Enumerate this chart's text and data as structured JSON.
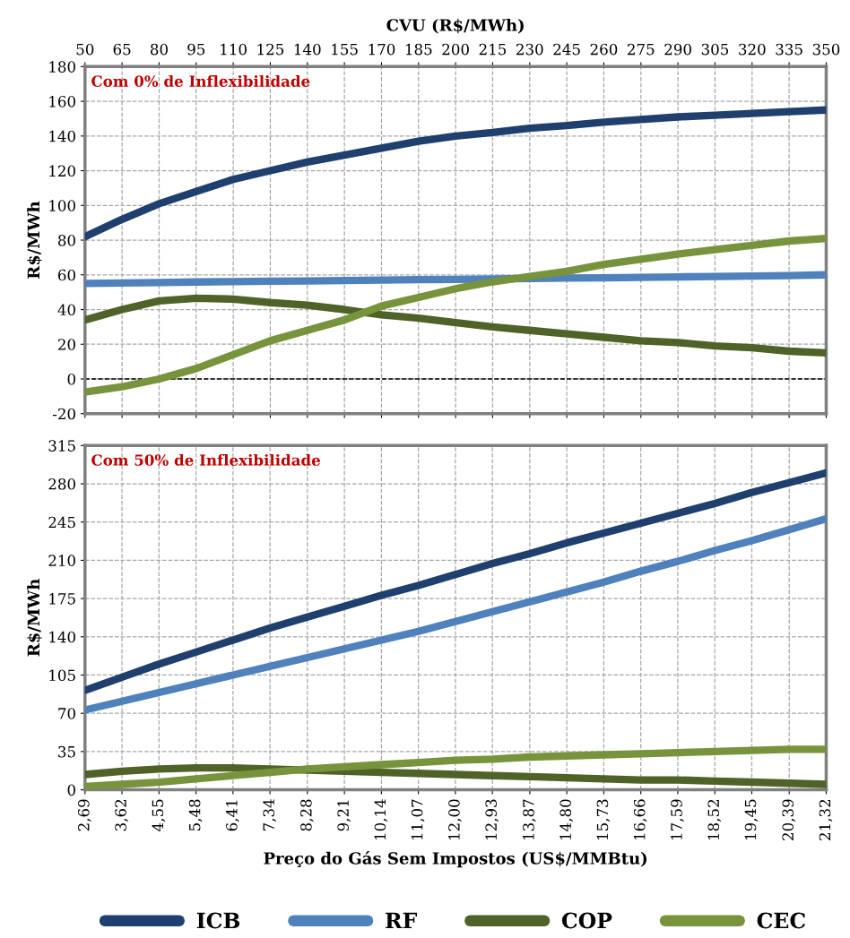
{
  "chart_data": [
    {
      "type": "line",
      "ylabel": "R$/MWh",
      "xlabel": "CVU (R$/MWh)",
      "annotations": [
        "Com 0% de Inflexibilidade"
      ],
      "xlim": [
        50,
        350
      ],
      "xticks": [
        50,
        65,
        80,
        95,
        110,
        125,
        140,
        155,
        170,
        185,
        200,
        215,
        230,
        245,
        260,
        275,
        290,
        305,
        320,
        335,
        350
      ],
      "ylim": [
        -20,
        180
      ],
      "yticks": [
        -20,
        0,
        20,
        40,
        60,
        80,
        100,
        120,
        140,
        160,
        180
      ],
      "x": [
        50,
        65,
        80,
        95,
        110,
        125,
        140,
        155,
        170,
        185,
        200,
        215,
        230,
        245,
        260,
        275,
        290,
        305,
        320,
        335,
        350
      ],
      "grid": true,
      "legend": false,
      "marker": "none",
      "line_style": "solid",
      "ref_lines": [
        {
          "axis": "y",
          "value": 0,
          "color": "#000000",
          "line_style": "dashed"
        }
      ],
      "series": [
        {
          "color": "#1f3f6e",
          "values": [
            82,
            92,
            101,
            108,
            115,
            120,
            125,
            129,
            133,
            137,
            140,
            142,
            144.5,
            146,
            148,
            149.5,
            151,
            152,
            153,
            154,
            155
          ]
        },
        {
          "color": "#4f81bd",
          "values": [
            55,
            55.3,
            55.6,
            55.9,
            56.1,
            56.3,
            56.5,
            56.7,
            57,
            57.2,
            57.4,
            57.6,
            57.9,
            58.1,
            58.3,
            58.5,
            58.8,
            59,
            59.3,
            59.6,
            60
          ]
        },
        {
          "color": "#4f6228",
          "values": [
            34,
            40,
            45,
            46.5,
            46,
            44,
            42.5,
            40,
            37,
            35,
            32.5,
            30,
            28,
            26,
            24,
            22,
            21,
            19,
            18,
            16,
            15
          ]
        },
        {
          "color": "#77933c",
          "values": [
            -7.5,
            -4.5,
            0,
            6,
            14,
            22,
            28,
            34,
            42,
            47,
            52,
            56,
            59,
            62,
            66,
            69,
            72,
            74.5,
            77,
            79.5,
            81
          ]
        }
      ]
    },
    {
      "type": "line",
      "ylabel": "R$/MWh",
      "xlabel": "Preço do Gás Sem Impostos (US$/MMBtu)",
      "annotations": [
        "Com 50% de Inflexibilidade"
      ],
      "xlim": [
        2.69,
        21.32
      ],
      "xticks": [
        {
          "value": 2.69,
          "label": "2,69"
        },
        {
          "value": 3.62,
          "label": "3,62"
        },
        {
          "value": 4.55,
          "label": "4,55"
        },
        {
          "value": 5.48,
          "label": "5,48"
        },
        {
          "value": 6.41,
          "label": "6,41"
        },
        {
          "value": 7.34,
          "label": "7,34"
        },
        {
          "value": 8.28,
          "label": "8,28"
        },
        {
          "value": 9.21,
          "label": "9,21"
        },
        {
          "value": 10.14,
          "label": "10,14"
        },
        {
          "value": 11.07,
          "label": "11,07"
        },
        {
          "value": 12.0,
          "label": "12,00"
        },
        {
          "value": 12.93,
          "label": "12,93"
        },
        {
          "value": 13.87,
          "label": "13,87"
        },
        {
          "value": 14.8,
          "label": "14,80"
        },
        {
          "value": 15.73,
          "label": "15,73"
        },
        {
          "value": 16.66,
          "label": "16,66"
        },
        {
          "value": 17.59,
          "label": "17,59"
        },
        {
          "value": 18.52,
          "label": "18,52"
        },
        {
          "value": 19.45,
          "label": "19,45"
        },
        {
          "value": 20.39,
          "label": "20,39"
        },
        {
          "value": 21.32,
          "label": "21,32"
        }
      ],
      "ylim": [
        0,
        315
      ],
      "yticks": [
        0,
        35,
        70,
        105,
        140,
        175,
        210,
        245,
        280,
        315
      ],
      "x": [
        2.69,
        3.62,
        4.55,
        5.48,
        6.41,
        7.34,
        8.28,
        9.21,
        10.14,
        11.07,
        12.0,
        12.93,
        13.87,
        14.8,
        15.73,
        16.66,
        17.59,
        18.52,
        19.45,
        20.39,
        21.32
      ],
      "grid": true,
      "legend": "bottom",
      "marker": "none",
      "line_style": "solid",
      "series": [
        {
          "name": "ICB",
          "color": "#1f3f6e",
          "values": [
            91,
            103,
            115,
            126,
            137,
            148,
            158,
            168,
            178,
            187,
            197,
            207,
            216,
            226,
            235,
            244,
            253,
            262,
            272,
            281,
            290
          ]
        },
        {
          "name": "RF",
          "color": "#4f81bd",
          "values": [
            73,
            81,
            89,
            97,
            105,
            113,
            121,
            129,
            137,
            145,
            154,
            163,
            172,
            181,
            190,
            200,
            209,
            219,
            228,
            238,
            248
          ]
        },
        {
          "name": "COP",
          "color": "#4f6228",
          "values": [
            14,
            17,
            19,
            20,
            20,
            19,
            18,
            17,
            16,
            15,
            14,
            13,
            12,
            11,
            10,
            9,
            9,
            8,
            7,
            6,
            5
          ]
        },
        {
          "name": "CEC",
          "color": "#77933c",
          "values": [
            3,
            5,
            7,
            10,
            13,
            16,
            19,
            21,
            23,
            25,
            27,
            28,
            30,
            31,
            32,
            33,
            34,
            35,
            36,
            37,
            37
          ]
        }
      ]
    }
  ]
}
